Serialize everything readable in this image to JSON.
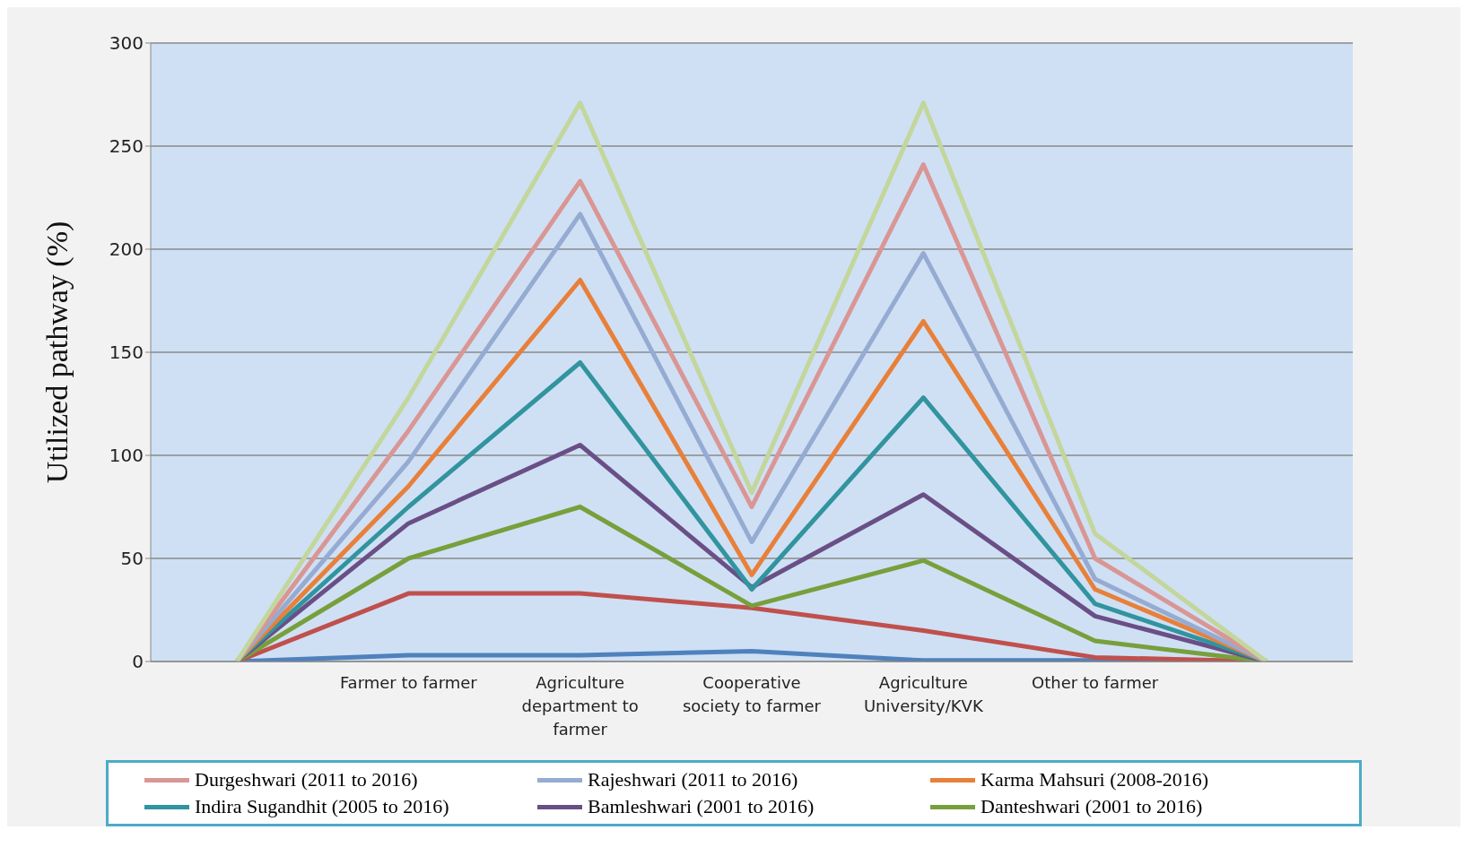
{
  "chart_data": {
    "type": "line",
    "ylabel": "Utilized pathway (%)",
    "categories": [
      null,
      "Farmer to farmer",
      "Agriculture department to farmer",
      "Cooperative society to farmer",
      "Agriculture University/KVK",
      "Other to farmer",
      null
    ],
    "series": [
      {
        "color": "#4f81bd",
        "values": [
          0,
          3,
          3,
          5,
          0.5,
          0.5,
          0
        ]
      },
      {
        "color": "#c0504d",
        "values": [
          0,
          33,
          33,
          26,
          15,
          2,
          0
        ]
      },
      {
        "name": "Danteshwari (2001 to 2016)",
        "color": "#77a03c",
        "values": [
          0,
          50,
          75,
          27,
          49,
          10,
          0
        ]
      },
      {
        "name": "Bamleshwari (2001 to 2016)",
        "color": "#6a4f86",
        "values": [
          0,
          67,
          105,
          36,
          81,
          22,
          0
        ]
      },
      {
        "name": "Indira Sugandhit (2005 to 2016)",
        "color": "#31949f",
        "values": [
          0,
          75,
          145,
          35,
          128,
          28,
          0
        ]
      },
      {
        "name": "Karma Mahsuri (2008-2016)",
        "color": "#e8803a",
        "values": [
          0,
          85,
          185,
          42,
          165,
          35,
          0
        ]
      },
      {
        "name": "Rajeshwari (2011 to 2016)",
        "color": "#95abd2",
        "values": [
          0,
          97,
          217,
          58,
          198,
          40,
          0
        ]
      },
      {
        "name": "Durgeshwari (2011 to 2016)",
        "color": "#d99694",
        "values": [
          0,
          112,
          233,
          75,
          241,
          50,
          0
        ]
      },
      {
        "color": "#c3d69b",
        "values": [
          0,
          128,
          271,
          82,
          271,
          62,
          0
        ]
      }
    ],
    "ylim": [
      0,
      300
    ],
    "yticks": [
      0,
      50,
      100,
      150,
      200,
      250,
      300
    ],
    "grid": "y",
    "legend": "bottom",
    "marker": "none",
    "line_style": "solid"
  }
}
